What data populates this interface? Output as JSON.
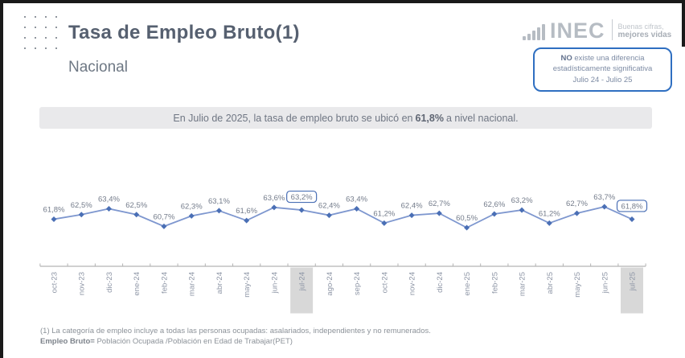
{
  "header": {
    "title": "Tasa de Empleo Bruto(1)",
    "region": "Nacional"
  },
  "logo": {
    "text": "INEC",
    "tagline_line1": "Buenas cifras,",
    "tagline_line2": "mejores vidas"
  },
  "note_box": {
    "emphasis": "NO",
    "line1_rest": " existe una diferencia",
    "line2": "estadísticamente significativa",
    "line3": "Julio 24 - Julio 25"
  },
  "banner": {
    "text_before": "En Julio de 2025, la tasa de empleo bruto se ubicó en",
    "value": "61,8%",
    "text_after": "a nivel nacional."
  },
  "chart_data": {
    "type": "line",
    "title": "Tasa de Empleo Bruto - Nacional",
    "categories": [
      "oct-23",
      "nov-23",
      "dic-23",
      "ene-24",
      "feb-24",
      "mar-24",
      "abr-24",
      "may-24",
      "jun-24",
      "jul-24",
      "ago-24",
      "sep-24",
      "oct-24",
      "nov-24",
      "dic-24",
      "ene-25",
      "feb-25",
      "mar-25",
      "abr-25",
      "may-25",
      "jun-25",
      "jul-25"
    ],
    "values": [
      61.8,
      62.5,
      63.4,
      62.5,
      60.7,
      62.3,
      63.1,
      61.6,
      63.6,
      63.2,
      62.4,
      63.4,
      61.2,
      62.4,
      62.7,
      60.5,
      62.6,
      63.2,
      61.2,
      62.7,
      63.7,
      61.8
    ],
    "value_suffix": "%",
    "decimal_separator": ",",
    "boxed_label_indices": [
      9,
      21
    ],
    "highlighted_category_indices": [
      9,
      21
    ],
    "ylim": [
      60,
      64.5
    ],
    "grid": false,
    "legend": false,
    "colors": {
      "line": "#7e97cf",
      "marker": "#4a6fb5",
      "value_label": "#747c8b",
      "box_stroke": "#4a6fb5",
      "axis": "#b3b3b3",
      "category_label": "#8e96a6",
      "highlight_bg": "#d8d8d8"
    }
  },
  "footnotes": {
    "line1": "(1) La categoría de empleo incluye a todas las personas ocupadas: asalariados, independientes y no remunerados.",
    "line2_bold": "Empleo Bruto=",
    "line2_rest": " Población Ocupada /Población en Edad de Trabajar(PET)"
  }
}
